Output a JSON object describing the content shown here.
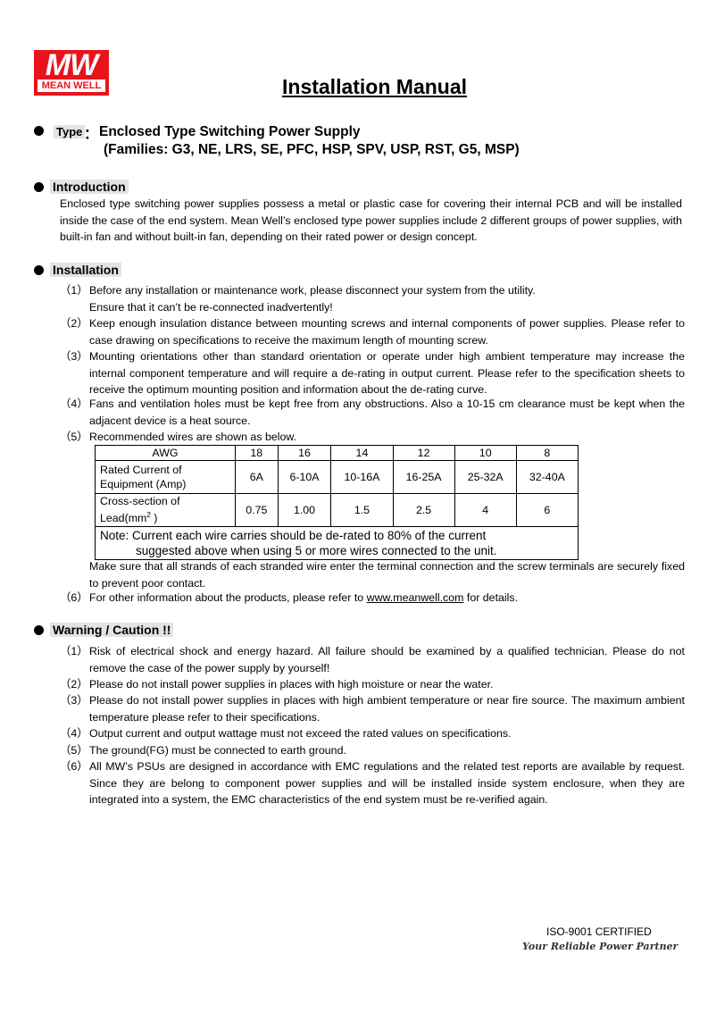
{
  "logo": {
    "mark": "MW",
    "text": "MEAN WELL",
    "color": "#e8141b"
  },
  "title": "Installation Manual",
  "type": {
    "label": "Type",
    "sep": "：",
    "line1": "Enclosed Type Switching Power Supply",
    "line2": "(Families: G3, NE, LRS, SE, PFC, HSP, SPV, USP, RST, G5, MSP)"
  },
  "introduction": {
    "label": "Introduction",
    "text": "Enclosed type switching power supplies possess a metal or plastic case for covering their internal PCB and will be installed inside the case of the end system. Mean Well’s enclosed type power supplies include 2 different groups of power supplies, with built-in fan and without built-in fan, depending on their rated power or design concept."
  },
  "installation": {
    "label": "Installation",
    "items": [
      {
        "num": "（1）",
        "text": "Before any installation or maintenance work, please disconnect your system from the utility.",
        "text2": "Ensure that it can’t be re-connected inadvertently!"
      },
      {
        "num": "（2）",
        "text": "Keep enough insulation distance between mounting screws and internal components of power supplies. Please refer to case drawing on specifications to receive the maximum length of mounting screw."
      },
      {
        "num": "（3）",
        "text": "Mounting orientations other than standard orientation or operate under high ambient temperature may increase the internal component temperature and will require a de-rating in output current. Please refer to the specification sheets to receive the optimum mounting position and information about the de-rating curve."
      },
      {
        "num": "（4）",
        "text": "Fans and ventilation holes must be kept free from any obstructions. Also a 10-15 cm clearance must be kept when the adjacent device is a heat source."
      },
      {
        "num": "（5）",
        "text": "Recommended wires are shown as below."
      },
      {
        "num": "（6）",
        "text": "For other information about the products, please refer to ",
        "link": "www.meanwell.com",
        "after": " for details."
      }
    ],
    "after_table": "Make sure that all strands of each stranded wire enter the terminal connection and the screw terminals are securely fixed to prevent poor contact.",
    "table": {
      "awg_label": "AWG",
      "awg": [
        "18",
        "16",
        "14",
        "12",
        "10",
        "8"
      ],
      "current_label": "Rated Current of Equipment (Amp)",
      "current": [
        "6A",
        "6-10A",
        "10-16A",
        "16-25A",
        "25-32A",
        "32-40A"
      ],
      "cross_label": "Cross-section of Lead(mm",
      "cross_sup": "2",
      "cross_end": " )",
      "cross": [
        "0.75",
        "1.00",
        "1.5",
        "2.5",
        "4",
        "6"
      ],
      "note1": "Note: Current each wire carries should be de-rated to 80% of the current",
      "note2": "suggested above when using 5 or more wires connected to the unit."
    }
  },
  "warning": {
    "label": "Warning / Caution !!",
    "items": [
      {
        "num": "（1）",
        "text": "Risk of electrical shock and energy hazard. All failure should be examined by a qualified technician. Please do not remove the case of the power supply by yourself!"
      },
      {
        "num": "（2）",
        "text": "Please do not install power supplies in places with high moisture or near the water."
      },
      {
        "num": "（3）",
        "text": "Please do not install power supplies in places with high ambient temperature or near fire source. The maximum ambient temperature please refer to their specifications."
      },
      {
        "num": "（4）",
        "text": "Output current and output wattage must not exceed the rated values on specifications."
      },
      {
        "num": "（5）",
        "text": "The ground(FG) must be connected to earth ground."
      },
      {
        "num": "（6）",
        "text": "All MW’s PSUs are designed in accordance with EMC regulations and the related test reports are available by request. Since they are belong to component power supplies and will be installed inside system enclosure, when they are integrated into a system, the EMC characteristics of the end system must be re-verified again."
      }
    ]
  },
  "footer": {
    "iso": "ISO-9001 CERTIFIED",
    "slogan": "Your Reliable Power Partner"
  }
}
